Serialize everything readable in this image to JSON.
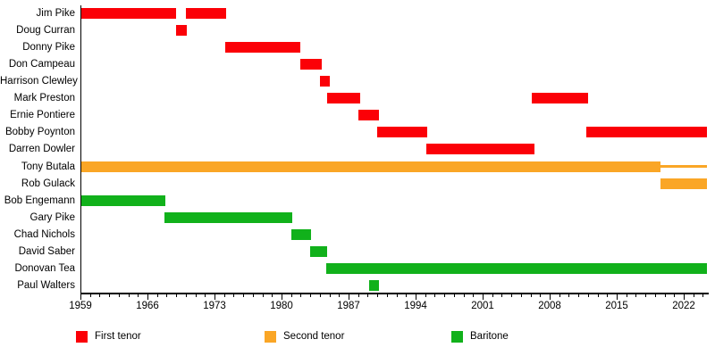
{
  "chart_data": {
    "type": "gantt-timeline",
    "title": "",
    "xlabel": "",
    "ylabel": "",
    "grid": false,
    "legend_position": "bottom",
    "x_axis": {
      "min": 1959,
      "max": 2024.5,
      "minor_tick_interval": 1,
      "major_tick_interval": 7,
      "major_tick_labels": [
        "1959",
        "1966",
        "1973",
        "1980",
        "1987",
        "1994",
        "2001",
        "2008",
        "2015",
        "2022"
      ]
    },
    "role_colors": {
      "First tenor": "#fb0007",
      "Second tenor": "#faa626",
      "Baritone": "#11b11b"
    },
    "legend": [
      {
        "label": "First tenor",
        "color": "#fb0007"
      },
      {
        "label": "Second tenor",
        "color": "#faa626"
      },
      {
        "label": "Baritone",
        "color": "#11b11b"
      }
    ],
    "rows": [
      {
        "name": "Jim Pike",
        "role": "First tenor",
        "segments": [
          {
            "start": 1959.0,
            "end": 1969.0
          },
          {
            "start": 1970.0,
            "end": 1974.2
          }
        ]
      },
      {
        "name": "Doug Curran",
        "role": "First tenor",
        "segments": [
          {
            "start": 1969.0,
            "end": 1970.1
          }
        ]
      },
      {
        "name": "Donny Pike",
        "role": "First tenor",
        "segments": [
          {
            "start": 1974.1,
            "end": 1982.0
          }
        ]
      },
      {
        "name": "Don Campeau",
        "role": "First tenor",
        "segments": [
          {
            "start": 1982.0,
            "end": 1984.2
          }
        ]
      },
      {
        "name": "Harrison Clewley",
        "role": "First tenor",
        "segments": [
          {
            "start": 1984.0,
            "end": 1985.0
          }
        ]
      },
      {
        "name": "Mark Preston",
        "role": "First tenor",
        "segments": [
          {
            "start": 1984.8,
            "end": 1988.2
          },
          {
            "start": 2006.1,
            "end": 2012.0
          }
        ]
      },
      {
        "name": "Ernie Pontiere",
        "role": "First tenor",
        "segments": [
          {
            "start": 1988.0,
            "end": 1990.2
          }
        ]
      },
      {
        "name": "Bobby Poynton",
        "role": "First tenor",
        "segments": [
          {
            "start": 1990.0,
            "end": 1995.2
          },
          {
            "start": 2011.8,
            "end": 2024.4
          }
        ]
      },
      {
        "name": "Darren Dowler",
        "role": "First tenor",
        "segments": [
          {
            "start": 1995.1,
            "end": 2006.4
          }
        ]
      },
      {
        "name": "Tony Butala",
        "role": "Second tenor",
        "segments": [
          {
            "start": 1959.0,
            "end": 2019.6
          },
          {
            "start": 2019.6,
            "end": 2024.4,
            "style": "thin"
          }
        ]
      },
      {
        "name": "Rob Gulack",
        "role": "Second tenor",
        "segments": [
          {
            "start": 2019.6,
            "end": 2024.4
          }
        ]
      },
      {
        "name": "Bob Engemann",
        "role": "Baritone",
        "segments": [
          {
            "start": 1959.0,
            "end": 1967.9
          }
        ]
      },
      {
        "name": "Gary Pike",
        "role": "Baritone",
        "segments": [
          {
            "start": 1967.8,
            "end": 1981.1
          }
        ]
      },
      {
        "name": "Chad Nichols",
        "role": "Baritone",
        "segments": [
          {
            "start": 1981.0,
            "end": 1983.1
          }
        ]
      },
      {
        "name": "David Saber",
        "role": "Baritone",
        "segments": [
          {
            "start": 1983.0,
            "end": 1984.8
          }
        ]
      },
      {
        "name": "Donovan Tea",
        "role": "Baritone",
        "segments": [
          {
            "start": 1984.7,
            "end": 2024.4
          }
        ]
      },
      {
        "name": "Paul Walters",
        "role": "Baritone",
        "segments": [
          {
            "start": 1989.1,
            "end": 1990.2
          }
        ]
      }
    ]
  }
}
